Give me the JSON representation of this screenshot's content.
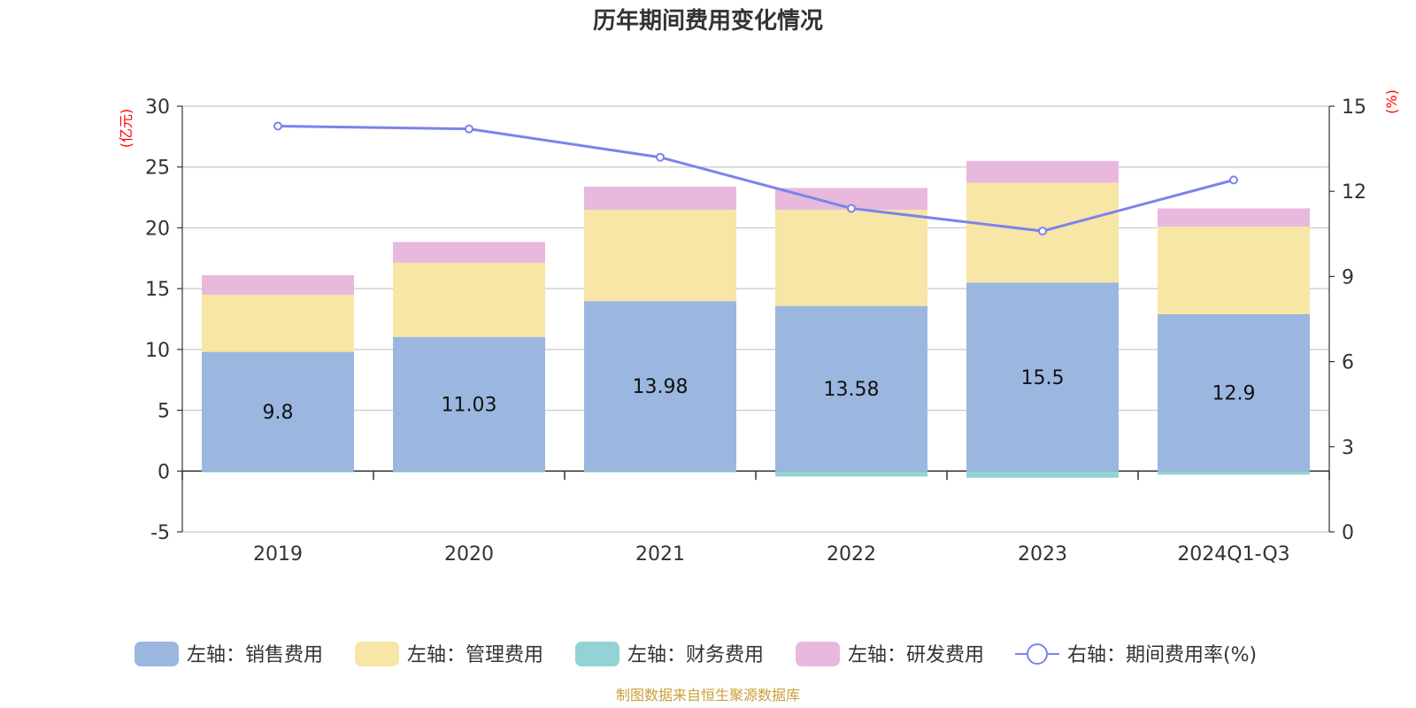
{
  "chart_data": {
    "type": "bar",
    "title": "历年期间费用变化情况",
    "categories": [
      "2019",
      "2020",
      "2021",
      "2022",
      "2023",
      "2024Q1-Q3"
    ],
    "left_axis": {
      "unit": "(亿元)",
      "min": -5,
      "max": 30,
      "ticks": [
        -5,
        0,
        5,
        10,
        15,
        20,
        25,
        30
      ]
    },
    "right_axis": {
      "unit": "(%)",
      "min": 0,
      "max": 15,
      "ticks": [
        0,
        3,
        6,
        9,
        12,
        15
      ]
    },
    "series": [
      {
        "name": "左轴：销售费用",
        "type": "bar",
        "axis": "left",
        "color": "#9bb7e0",
        "values": [
          9.8,
          11.03,
          13.98,
          13.58,
          15.5,
          12.9
        ],
        "labels": [
          "9.8",
          "11.03",
          "13.98",
          "13.58",
          "15.5",
          "12.9"
        ]
      },
      {
        "name": "左轴：管理费用",
        "type": "bar",
        "axis": "left",
        "color": "#f7e6a6",
        "values": [
          4.7,
          6.1,
          7.5,
          7.9,
          8.2,
          7.2
        ]
      },
      {
        "name": "左轴：财务费用",
        "type": "bar",
        "axis": "left",
        "color": "#93d3d6",
        "values": [
          -0.1,
          -0.1,
          -0.1,
          -0.45,
          -0.55,
          -0.3
        ]
      },
      {
        "name": "左轴：研发费用",
        "type": "bar",
        "axis": "left",
        "color": "#e8b9dc",
        "values": [
          1.6,
          1.7,
          1.9,
          1.8,
          1.8,
          1.5
        ]
      },
      {
        "name": "右轴：期间费用率(%)",
        "type": "line",
        "axis": "right",
        "color": "#7b83ec",
        "values": [
          14.3,
          14.2,
          13.2,
          11.4,
          10.6,
          12.4
        ]
      }
    ],
    "legend_position": "bottom",
    "grid": true
  },
  "source_note": "制图数据来自恒生聚源数据库"
}
